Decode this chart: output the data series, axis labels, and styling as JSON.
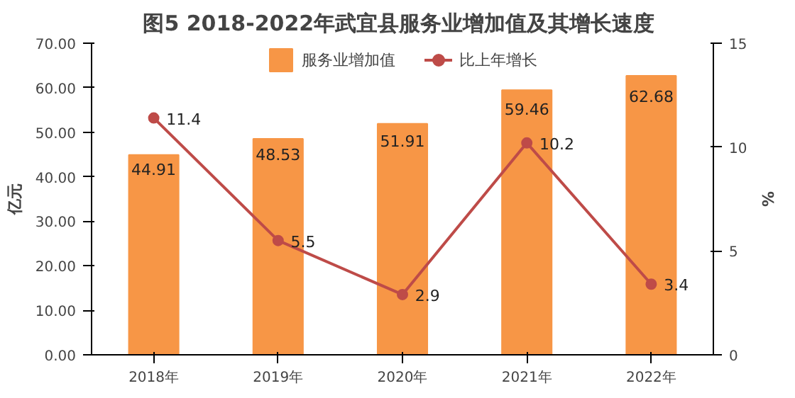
{
  "chart_data": {
    "type": "bar",
    "title": "图5  2018-2022年武宜县服务业增加值及其增长速度",
    "ylabel": "亿元",
    "y2label": "%",
    "categories": [
      "2018年",
      "2019年",
      "2020年",
      "2021年",
      "2022年"
    ],
    "series": [
      {
        "name": "服务业增加值",
        "color": "#f79646",
        "values": [
          44.91,
          48.53,
          51.91,
          59.46,
          62.68
        ],
        "value_labels": [
          "44.91",
          "48.53",
          "51.91",
          "59.46",
          "62.68"
        ]
      },
      {
        "name": "比上年增长",
        "type": "line",
        "axis": "y2",
        "color": "#be4b48",
        "marker": "circle",
        "values": [
          11.4,
          5.5,
          2.9,
          10.2,
          3.4
        ],
        "value_labels": [
          "11.4",
          "5.5",
          "2.9",
          "10.2",
          "3.4"
        ]
      }
    ],
    "ylim": [
      0,
      70
    ],
    "yticks": [
      {
        "value": 0,
        "label": "0.00"
      },
      {
        "value": 10,
        "label": "10.00"
      },
      {
        "value": 20,
        "label": "20.00"
      },
      {
        "value": 30,
        "label": "30.00"
      },
      {
        "value": 40,
        "label": "40.00"
      },
      {
        "value": 50,
        "label": "50.00"
      },
      {
        "value": 60,
        "label": "60.00"
      },
      {
        "value": 70,
        "label": "70.00"
      }
    ],
    "y2lim": [
      0,
      15
    ],
    "y2ticks": [
      0,
      5,
      10,
      15
    ],
    "legend": "top",
    "grid": false
  }
}
